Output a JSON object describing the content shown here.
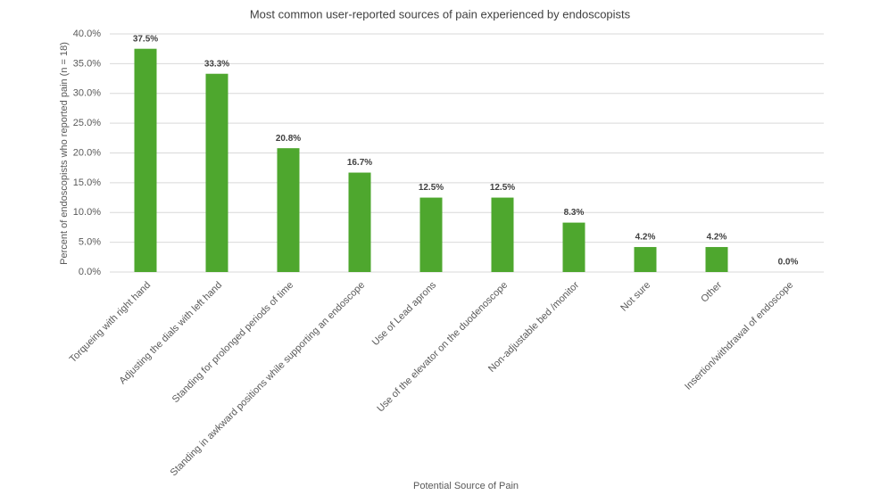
{
  "chart_data": {
    "type": "bar",
    "title": "Most common user-reported sources of pain experienced by endoscopists",
    "x_label": "Potential Source of Pain",
    "y_label": "Percent of endoscopists who reported pain  (n = 18)",
    "categories": [
      "Torqueing with right hand",
      "Adjusting the dials with left hand",
      "Standing for prolonged periods of time",
      "Standing in awkward positions while supporting an endoscope",
      "Use of Lead aprons",
      "Use of the elevator on the duodenoscope",
      "Non-adjustable bed /monitor",
      "Not sure",
      "Other",
      "Insertion/withdrawal of endoscope"
    ],
    "values": [
      37.5,
      33.3,
      20.8,
      16.7,
      12.5,
      12.5,
      8.3,
      4.2,
      4.2,
      0
    ],
    "value_labels": [
      "37.5%",
      "33.3%",
      "20.8%",
      "16.7%",
      "12.5%",
      "12.5%",
      "8.3%",
      "4.2%",
      "4.2%",
      "0.0%"
    ],
    "color": "#4ea72e",
    "ylim": [
      0,
      40
    ],
    "yticks": [
      {
        "value": 0,
        "label": "0.0%"
      },
      {
        "value": 5,
        "label": "5.0%"
      },
      {
        "value": 10,
        "label": "10.0%"
      },
      {
        "value": 15,
        "label": "15.0%"
      },
      {
        "value": 20,
        "label": "20.0%"
      },
      {
        "value": 25,
        "label": "25.0%"
      },
      {
        "value": 30,
        "label": "30.0%"
      },
      {
        "value": 35,
        "label": "35.0%"
      },
      {
        "value": 40,
        "label": "40.0%"
      }
    ],
    "grid": true
  }
}
